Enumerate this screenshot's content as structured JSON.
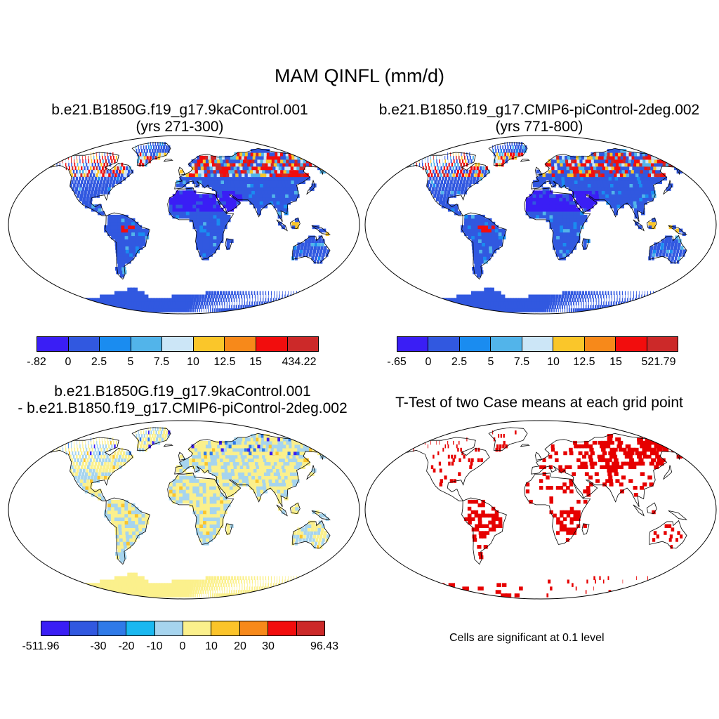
{
  "title": "MAM QINFL (mm/d)",
  "panels": {
    "tl": {
      "title1": "b.e21.B1850G.f19_g17.9kaControl.001",
      "title2": "(yrs 271-300)"
    },
    "tr": {
      "title1": "b.e21.B1850.f19_g17.CMIP6-piControl-2deg.002",
      "title2": "(yrs 771-800)"
    },
    "bl": {
      "title1": "b.e21.B1850G.f19_g17.9kaControl.001",
      "title2": "- b.e21.B1850.f19_g17.CMIP6-piControl-2deg.002"
    },
    "br": {
      "title1": "T-Test of two Case means at each grid point",
      "note": "Cells are significant at 0.1 level"
    }
  },
  "colorbars": {
    "tl": {
      "colors": [
        "#3a1ef5",
        "#3158e0",
        "#1a8cf0",
        "#52b4ea",
        "#cce6f7",
        "#fac62a",
        "#f7891a",
        "#f20d0d",
        "#cc2929"
      ],
      "labels": [
        ".-.82",
        "0",
        "2.5",
        "5",
        "7.5",
        "10",
        "12.5",
        "15",
        "434.22"
      ]
    },
    "tr": {
      "colors": [
        "#3a1ef5",
        "#3158e0",
        "#1a8cf0",
        "#52b4ea",
        "#cce6f7",
        "#fac62a",
        "#f7891a",
        "#f20d0d",
        "#cc2929"
      ],
      "labels": [
        "-.65",
        "0",
        "2.5",
        "5",
        "7.5",
        "10",
        "12.5",
        "15",
        "521.79"
      ]
    },
    "bl": {
      "colors": [
        "#3a1ef5",
        "#3158e0",
        "#2f7ae8",
        "#1ab8f0",
        "#a6d4ee",
        "#fbf08c",
        "#fbc42a",
        "#f7891a",
        "#f20d0d",
        "#cc2929"
      ],
      "labels": [
        "-511.96",
        "-30",
        "-20",
        "-10",
        "0",
        "10",
        "20",
        "30",
        "96.43"
      ]
    }
  }
}
